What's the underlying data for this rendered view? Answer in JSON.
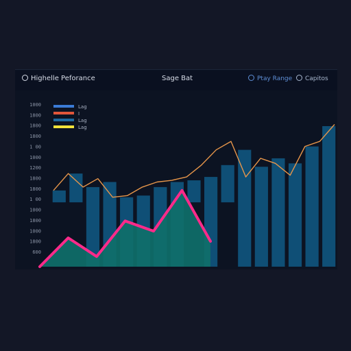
{
  "header": {
    "title": "Highelle Peforance",
    "center": "Sage Bat",
    "button_range": "Ptay Range",
    "button_capture": "Capitos",
    "range_icon": "circle-icon",
    "capture_icon": "circle-icon"
  },
  "colors": {
    "background": "#131726",
    "panel": "#0c1322",
    "bar": "#0f4f76",
    "bar_line": "#e8964a",
    "area_fill": "#0f6f6a",
    "area_line": "#ff2a8a",
    "tick_text": "#8b94a6"
  },
  "legend": [
    {
      "label": "Lag",
      "color": "#3b7bd6"
    },
    {
      "label": "I",
      "color": "#e0563a"
    },
    {
      "label": "Lag",
      "color": "#1e6aa0"
    },
    {
      "label": "Lag",
      "color": "#f2e23a"
    }
  ],
  "chart_data": {
    "type": "bar",
    "y_ticks": [
      "1000",
      "1800",
      "1800",
      "1800",
      "1 00",
      "1000",
      "1200",
      "1800",
      "1800",
      "1 00",
      "1000",
      "1800",
      "1000",
      "1800",
      "600"
    ],
    "ylim": [
      0,
      100
    ],
    "grid": false,
    "legend_position": "top-left",
    "bars": [
      {
        "base": 38,
        "top": 45
      },
      {
        "base": 38,
        "top": 55
      },
      {
        "base": 0,
        "top": 47
      },
      {
        "base": 0,
        "top": 50
      },
      {
        "base": 0,
        "top": 41
      },
      {
        "base": 0,
        "top": 42
      },
      {
        "base": 0,
        "top": 47
      },
      {
        "base": 0,
        "top": 50
      },
      {
        "base": 38,
        "top": 51
      },
      {
        "base": 0,
        "top": 53
      },
      {
        "base": 38,
        "top": 60
      },
      {
        "base": 0,
        "top": 69
      },
      {
        "base": 0,
        "top": 59
      },
      {
        "base": 0,
        "top": 64
      },
      {
        "base": 0,
        "top": 61
      },
      {
        "base": 0,
        "top": 71
      },
      {
        "base": 0,
        "top": 83
      }
    ],
    "bar_line": [
      45,
      55,
      47,
      52,
      41,
      42,
      47,
      50,
      51,
      53,
      60,
      69,
      74,
      53,
      64,
      61,
      54,
      71,
      74,
      84
    ],
    "area_line": [
      0,
      17,
      6,
      27,
      21,
      45,
      15
    ]
  }
}
